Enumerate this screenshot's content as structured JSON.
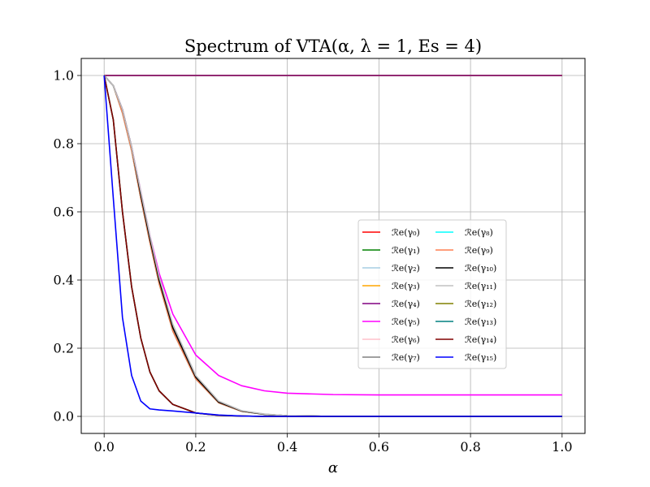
{
  "chart_data": {
    "type": "line",
    "title": "Spectrum of VTA(α, λ = 1, Es = 4)",
    "xlabel": "α",
    "ylabel": "",
    "xlim": [
      -0.05,
      1.05
    ],
    "ylim": [
      -0.05,
      1.05
    ],
    "xticks": [
      "0.0",
      "0.2",
      "0.4",
      "0.6",
      "0.8",
      "1.0"
    ],
    "yticks": [
      "0.0",
      "0.2",
      "0.4",
      "0.6",
      "0.8",
      "1.0"
    ],
    "grid": true,
    "legend_position": "center-right",
    "legend_columns": 2,
    "x": [
      0.0,
      0.02,
      0.04,
      0.06,
      0.08,
      0.1,
      0.12,
      0.15,
      0.2,
      0.25,
      0.3,
      0.35,
      0.4,
      0.5,
      0.6,
      0.7,
      0.8,
      0.9,
      1.0
    ],
    "series": [
      {
        "name": "ℛe(γ₀)",
        "color": "#ff0000",
        "values": [
          1,
          1,
          1,
          1,
          1,
          1,
          1,
          1,
          1,
          1,
          1,
          1,
          1,
          1,
          1,
          1,
          1,
          1,
          1
        ]
      },
      {
        "name": "ℛe(γ₁)",
        "color": "#008000",
        "values": [
          1,
          1,
          1,
          1,
          1,
          1,
          1,
          1,
          1,
          1,
          1,
          1,
          1,
          1,
          1,
          1,
          1,
          1,
          1
        ]
      },
      {
        "name": "ℛe(γ₂)",
        "color": "#a6cee3",
        "values": [
          1,
          1,
          1,
          1,
          1,
          1,
          1,
          1,
          1,
          1,
          1,
          1,
          1,
          1,
          1,
          1,
          1,
          1,
          1
        ]
      },
      {
        "name": "ℛe(γ₃)",
        "color": "#ffa500",
        "values": [
          1,
          1,
          1,
          1,
          1,
          1,
          1,
          1,
          1,
          1,
          1,
          1,
          1,
          1,
          1,
          1,
          1,
          1,
          1
        ]
      },
      {
        "name": "ℛe(γ₄)",
        "color": "#800080",
        "values": [
          1,
          1,
          1,
          1,
          1,
          1,
          1,
          1,
          1,
          1,
          1,
          1,
          1,
          1,
          1,
          1,
          1,
          1,
          1
        ]
      },
      {
        "name": "ℛe(γ₅)",
        "color": "#ff00ff",
        "values": [
          1.0,
          0.97,
          0.9,
          0.79,
          0.66,
          0.53,
          0.42,
          0.3,
          0.18,
          0.12,
          0.09,
          0.075,
          0.068,
          0.064,
          0.063,
          0.063,
          0.063,
          0.063,
          0.063
        ]
      },
      {
        "name": "ℛe(γ₆)",
        "color": "#ffc0cb",
        "values": [
          1.0,
          0.97,
          0.89,
          0.78,
          0.64,
          0.51,
          0.39,
          0.25,
          0.11,
          0.04,
          0.015,
          0.006,
          0.002,
          0.0,
          0.0,
          0.0,
          0.0,
          0.0,
          0.0
        ]
      },
      {
        "name": "ℛe(γ₇)",
        "color": "#808080",
        "values": [
          1.0,
          0.97,
          0.89,
          0.78,
          0.64,
          0.51,
          0.39,
          0.25,
          0.11,
          0.04,
          0.015,
          0.006,
          0.002,
          0.0,
          0.0,
          0.0,
          0.0,
          0.0,
          0.0
        ]
      },
      {
        "name": "ℛe(γ₈)",
        "color": "#00ffff",
        "values": [
          1.0,
          0.97,
          0.89,
          0.78,
          0.64,
          0.51,
          0.39,
          0.25,
          0.11,
          0.04,
          0.015,
          0.006,
          0.002,
          0.0,
          0.0,
          0.0,
          0.0,
          0.0,
          0.0
        ]
      },
      {
        "name": "ℛe(γ₉)",
        "color": "#ff7f50",
        "values": [
          1.0,
          0.97,
          0.89,
          0.78,
          0.64,
          0.51,
          0.39,
          0.25,
          0.11,
          0.04,
          0.015,
          0.006,
          0.002,
          0.0,
          0.0,
          0.0,
          0.0,
          0.0,
          0.0
        ]
      },
      {
        "name": "ℛe(γ₁₀)",
        "color": "#000000",
        "values": [
          1.0,
          0.97,
          0.9,
          0.79,
          0.65,
          0.52,
          0.4,
          0.26,
          0.115,
          0.042,
          0.016,
          0.006,
          0.002,
          0.0,
          0.0,
          0.0,
          0.0,
          0.0,
          0.0
        ]
      },
      {
        "name": "ℛe(γ₁₁)",
        "color": "#c0c0c0",
        "values": [
          1.0,
          0.97,
          0.9,
          0.79,
          0.66,
          0.53,
          0.41,
          0.27,
          0.12,
          0.045,
          0.017,
          0.007,
          0.002,
          0.0,
          0.0,
          0.0,
          0.0,
          0.0,
          0.0
        ]
      },
      {
        "name": "ℛe(γ₁₂)",
        "color": "#808000",
        "values": [
          1.0,
          0.87,
          0.6,
          0.38,
          0.23,
          0.13,
          0.075,
          0.035,
          0.01,
          0.003,
          0.001,
          0.0,
          0.0,
          0.0,
          0.0,
          0.0,
          0.0,
          0.0,
          0.0
        ]
      },
      {
        "name": "ℛe(γ₁₃)",
        "color": "#008080",
        "values": [
          1.0,
          0.87,
          0.6,
          0.38,
          0.23,
          0.13,
          0.075,
          0.035,
          0.01,
          0.003,
          0.001,
          0.0,
          0.0,
          0.0,
          0.0,
          0.0,
          0.0,
          0.0,
          0.0
        ]
      },
      {
        "name": "ℛe(γ₁₄)",
        "color": "#800000",
        "values": [
          1.0,
          0.87,
          0.6,
          0.38,
          0.23,
          0.13,
          0.075,
          0.035,
          0.01,
          0.003,
          0.001,
          0.0,
          0.0,
          0.0,
          0.0,
          0.0,
          0.0,
          0.0,
          0.0
        ]
      },
      {
        "name": "ℛe(γ₁₅)",
        "color": "#0000ff",
        "values": [
          1.0,
          0.64,
          0.29,
          0.12,
          0.045,
          0.022,
          0.019,
          0.016,
          0.01,
          0.004,
          0.001,
          0.0,
          0.0,
          0.0,
          0.0,
          0.0,
          0.0,
          0.0,
          0.0
        ]
      }
    ]
  }
}
